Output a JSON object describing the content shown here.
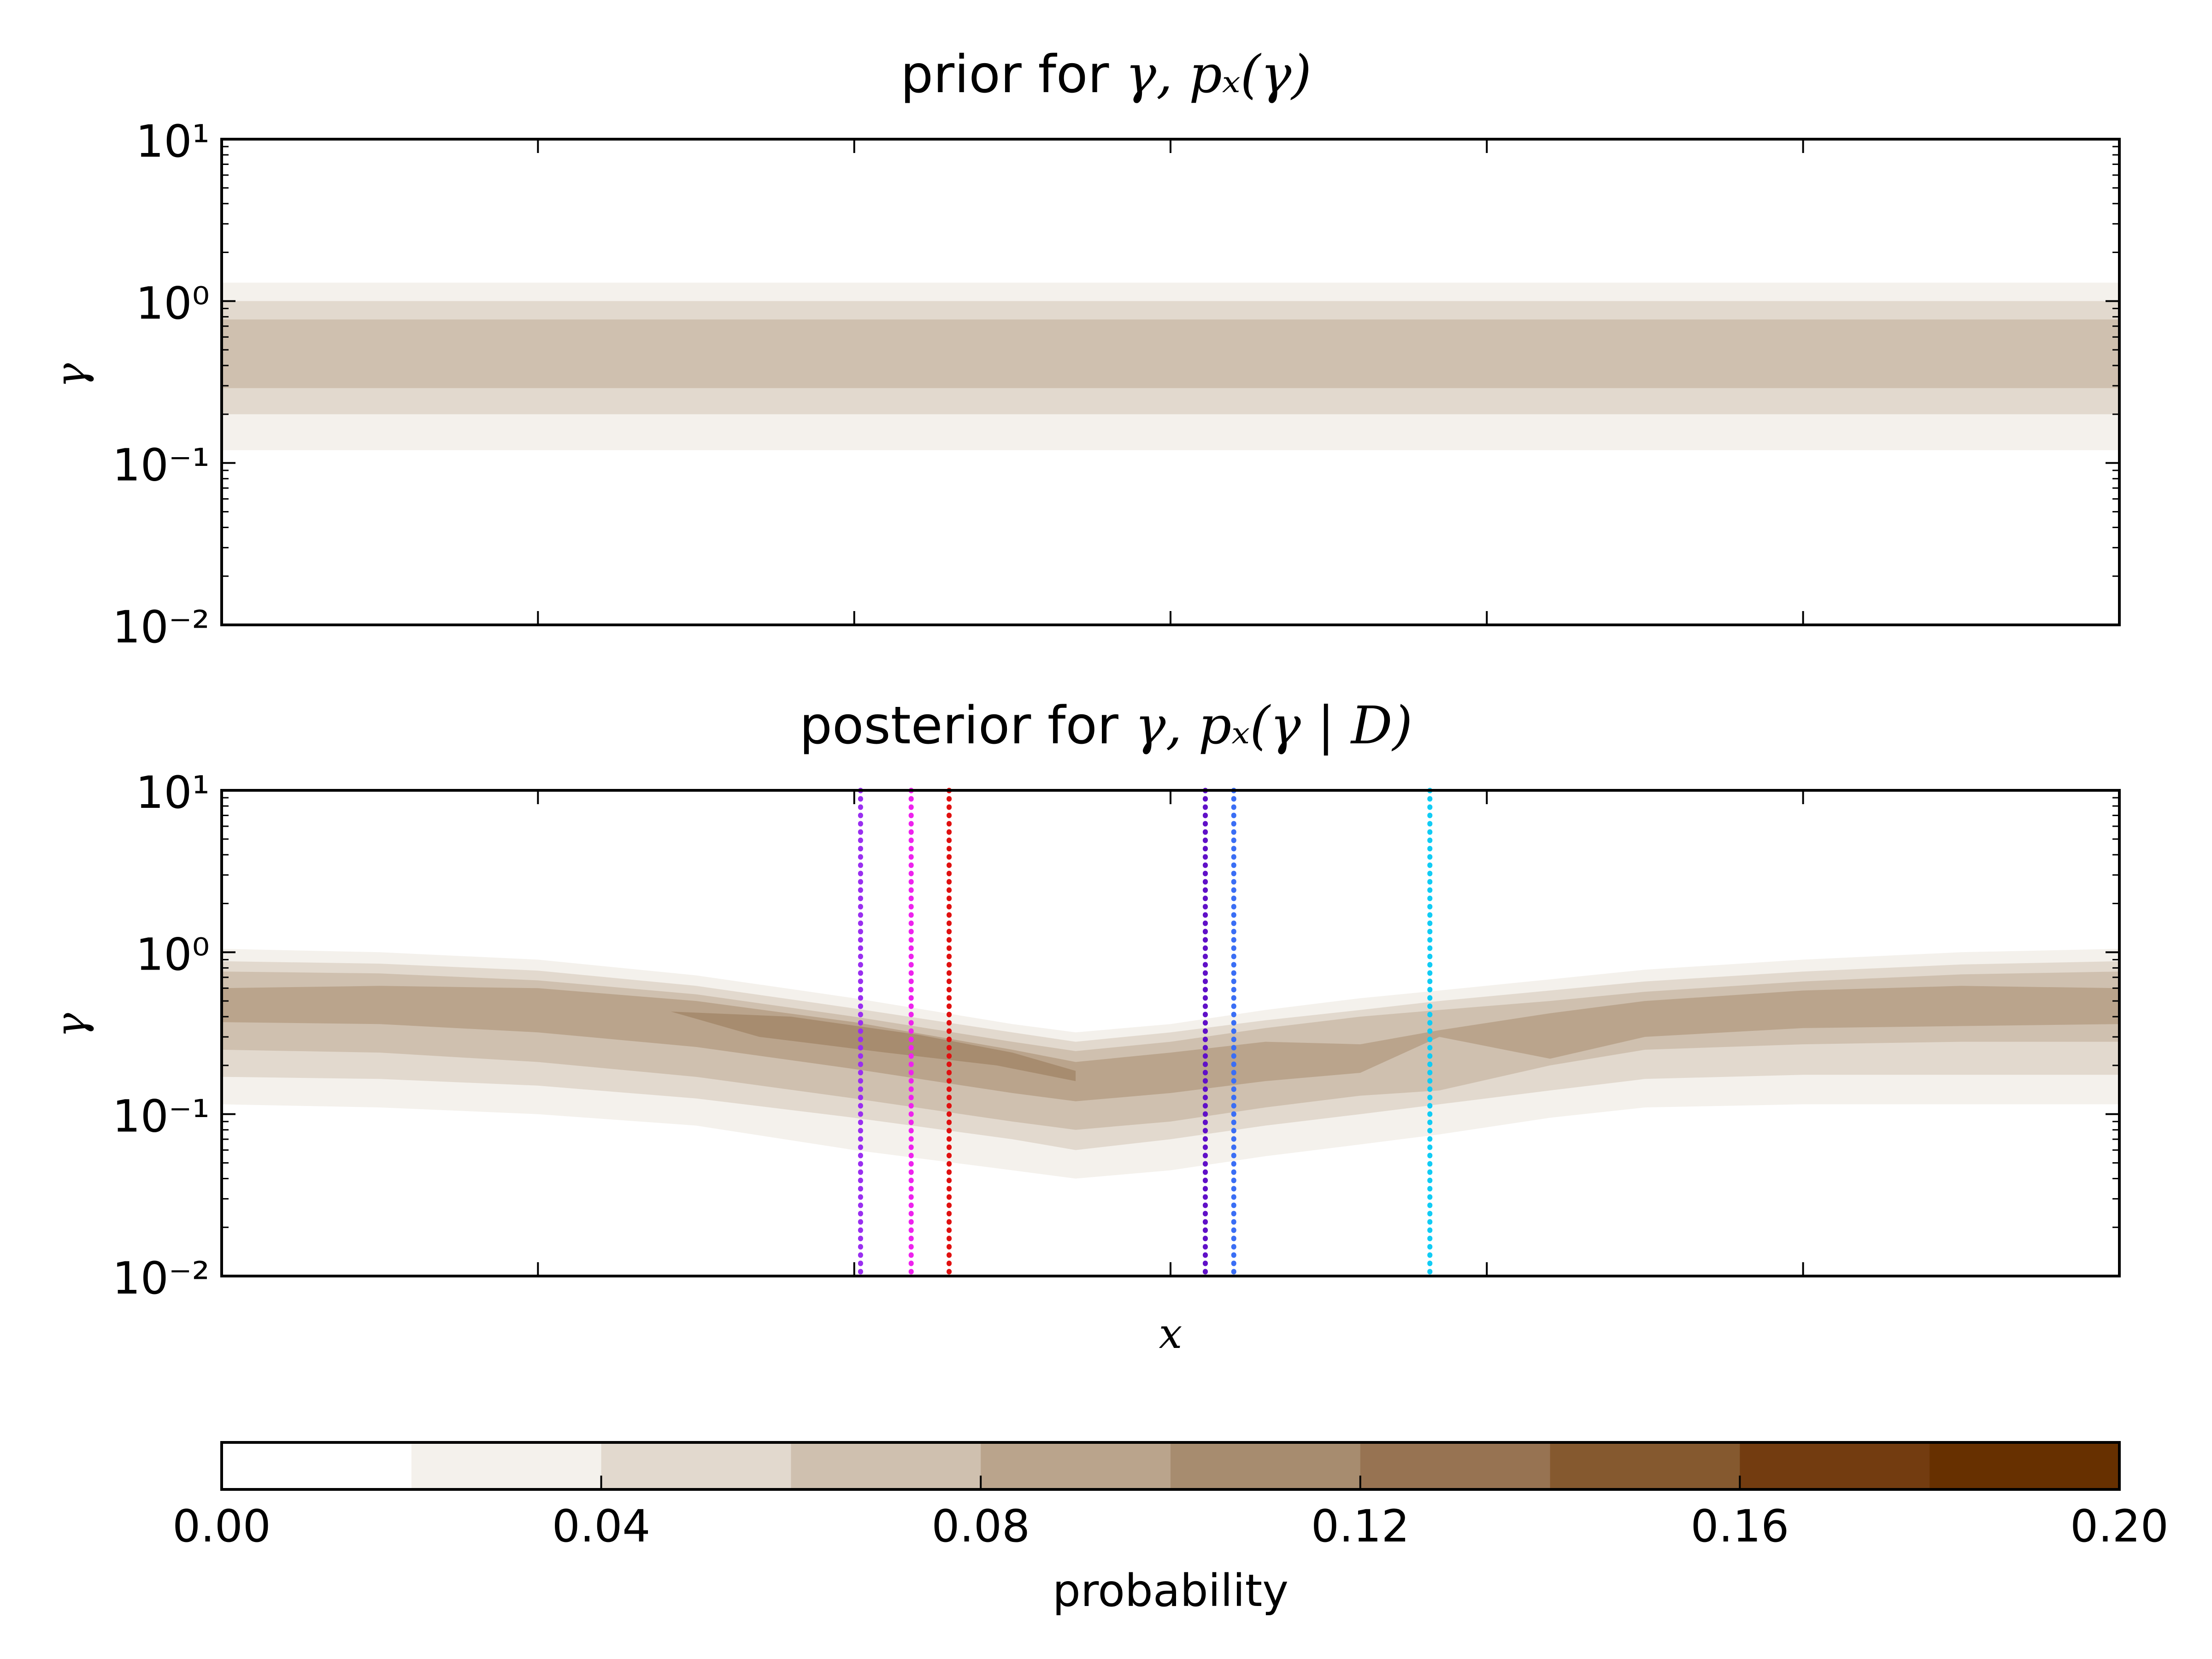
{
  "figure": {
    "panels": [
      {
        "title_prefix": "prior for ",
        "title_math": "γ, pₓ(γ)",
        "ylabel": "γ"
      },
      {
        "title_prefix": "posterior for ",
        "title_math": "γ, pₓ(γ | D)",
        "ylabel": "γ",
        "xlabel": "x"
      }
    ],
    "colorbar": {
      "label": "probability",
      "ticks": [
        "0.00",
        "0.04",
        "0.08",
        "0.12",
        "0.16",
        "0.20"
      ]
    }
  },
  "chart_data": [
    {
      "type": "heatmap",
      "panel": "prior",
      "title": "prior for γ, pₓ(γ)",
      "ylabel": "γ",
      "yscale": "log",
      "ylim": [
        0.01,
        10
      ],
      "ytick_labels": [
        "10⁻²",
        "10⁻¹",
        "10⁰",
        "10¹"
      ],
      "xlim": [
        0,
        6
      ],
      "bands": [
        {
          "level": 0.02,
          "lower": 0.12,
          "upper": 1.3
        },
        {
          "level": 0.04,
          "lower": 0.2,
          "upper": 1.0
        },
        {
          "level": 0.06,
          "lower": 0.29,
          "upper": 0.77
        }
      ]
    },
    {
      "type": "heatmap",
      "panel": "posterior",
      "title": "posterior for γ, pₓ(γ | D)",
      "xlabel": "x",
      "ylabel": "γ",
      "yscale": "log",
      "ylim": [
        0.01,
        10
      ],
      "ytick_labels": [
        "10⁻²",
        "10⁻¹",
        "10⁰",
        "10¹"
      ],
      "xlim": [
        0,
        6
      ],
      "x": [
        0,
        0.5,
        1.0,
        1.5,
        2.0,
        2.5,
        2.7,
        3.0,
        3.3,
        3.6,
        3.85,
        4.2,
        4.5,
        5.0,
        5.5,
        6.0
      ],
      "bands": [
        {
          "level": 0.02,
          "lower": [
            0.115,
            0.11,
            0.1,
            0.085,
            0.06,
            0.045,
            0.04,
            0.045,
            0.055,
            0.065,
            0.075,
            0.095,
            0.11,
            0.115,
            0.115,
            0.115
          ],
          "upper": [
            1.05,
            1.0,
            0.9,
            0.72,
            0.52,
            0.36,
            0.32,
            0.36,
            0.44,
            0.52,
            0.58,
            0.68,
            0.78,
            0.9,
            1.0,
            1.05
          ]
        },
        {
          "level": 0.04,
          "lower": [
            0.17,
            0.165,
            0.15,
            0.125,
            0.095,
            0.07,
            0.06,
            0.07,
            0.085,
            0.1,
            0.115,
            0.14,
            0.165,
            0.175,
            0.175,
            0.175
          ],
          "upper": [
            0.88,
            0.85,
            0.77,
            0.62,
            0.45,
            0.32,
            0.28,
            0.32,
            0.38,
            0.44,
            0.5,
            0.58,
            0.66,
            0.76,
            0.84,
            0.88
          ]
        },
        {
          "level": 0.06,
          "lower": [
            0.25,
            0.24,
            0.21,
            0.17,
            0.125,
            0.09,
            0.08,
            0.09,
            0.11,
            0.13,
            0.14,
            0.2,
            0.25,
            0.27,
            0.28,
            0.28
          ],
          "upper": [
            0.76,
            0.74,
            0.67,
            0.55,
            0.4,
            0.28,
            0.245,
            0.28,
            0.34,
            0.4,
            0.44,
            0.5,
            0.57,
            0.66,
            0.73,
            0.76
          ]
        },
        {
          "level": 0.08,
          "lower": [
            0.37,
            0.36,
            0.32,
            0.26,
            0.19,
            0.135,
            0.12,
            0.135,
            0.16,
            0.18,
            0.3,
            0.22,
            0.3,
            0.34,
            0.35,
            0.36
          ],
          "upper": [
            0.6,
            0.62,
            0.6,
            0.5,
            0.37,
            0.25,
            0.21,
            0.24,
            0.28,
            0.27,
            0.33,
            0.42,
            0.5,
            0.58,
            0.62,
            0.6
          ]
        },
        {
          "level": 0.1,
          "x": [
            1.42,
            1.8,
            2.2,
            2.5,
            2.7,
            2.7,
            2.45,
            2.1,
            1.7,
            1.42
          ],
          "y": [
            0.43,
            0.4,
            0.31,
            0.24,
            0.185,
            0.16,
            0.2,
            0.24,
            0.3,
            0.43
          ]
        }
      ],
      "vlines": [
        {
          "x": 2.02,
          "color": "#9a2ef0"
        },
        {
          "x": 2.18,
          "color": "#ee22ee"
        },
        {
          "x": 2.3,
          "color": "#e01010"
        },
        {
          "x": 3.11,
          "color": "#6010c8"
        },
        {
          "x": 3.2,
          "color": "#3a6ef5"
        },
        {
          "x": 3.82,
          "color": "#10ccf5"
        }
      ]
    }
  ],
  "colorbar": {
    "label": "probability",
    "levels": [
      0.0,
      0.02,
      0.04,
      0.06,
      0.08,
      0.1,
      0.12,
      0.14,
      0.16,
      0.18,
      0.2
    ],
    "colors": [
      "#ffffff",
      "#f4f1ec",
      "#e2d9ce",
      "#cfc0af",
      "#baa48c",
      "#a78c6f",
      "#977352",
      "#85592f",
      "#733c10",
      "#673000"
    ],
    "tick_values": [
      0.0,
      0.04,
      0.08,
      0.12,
      0.16,
      0.2
    ]
  }
}
